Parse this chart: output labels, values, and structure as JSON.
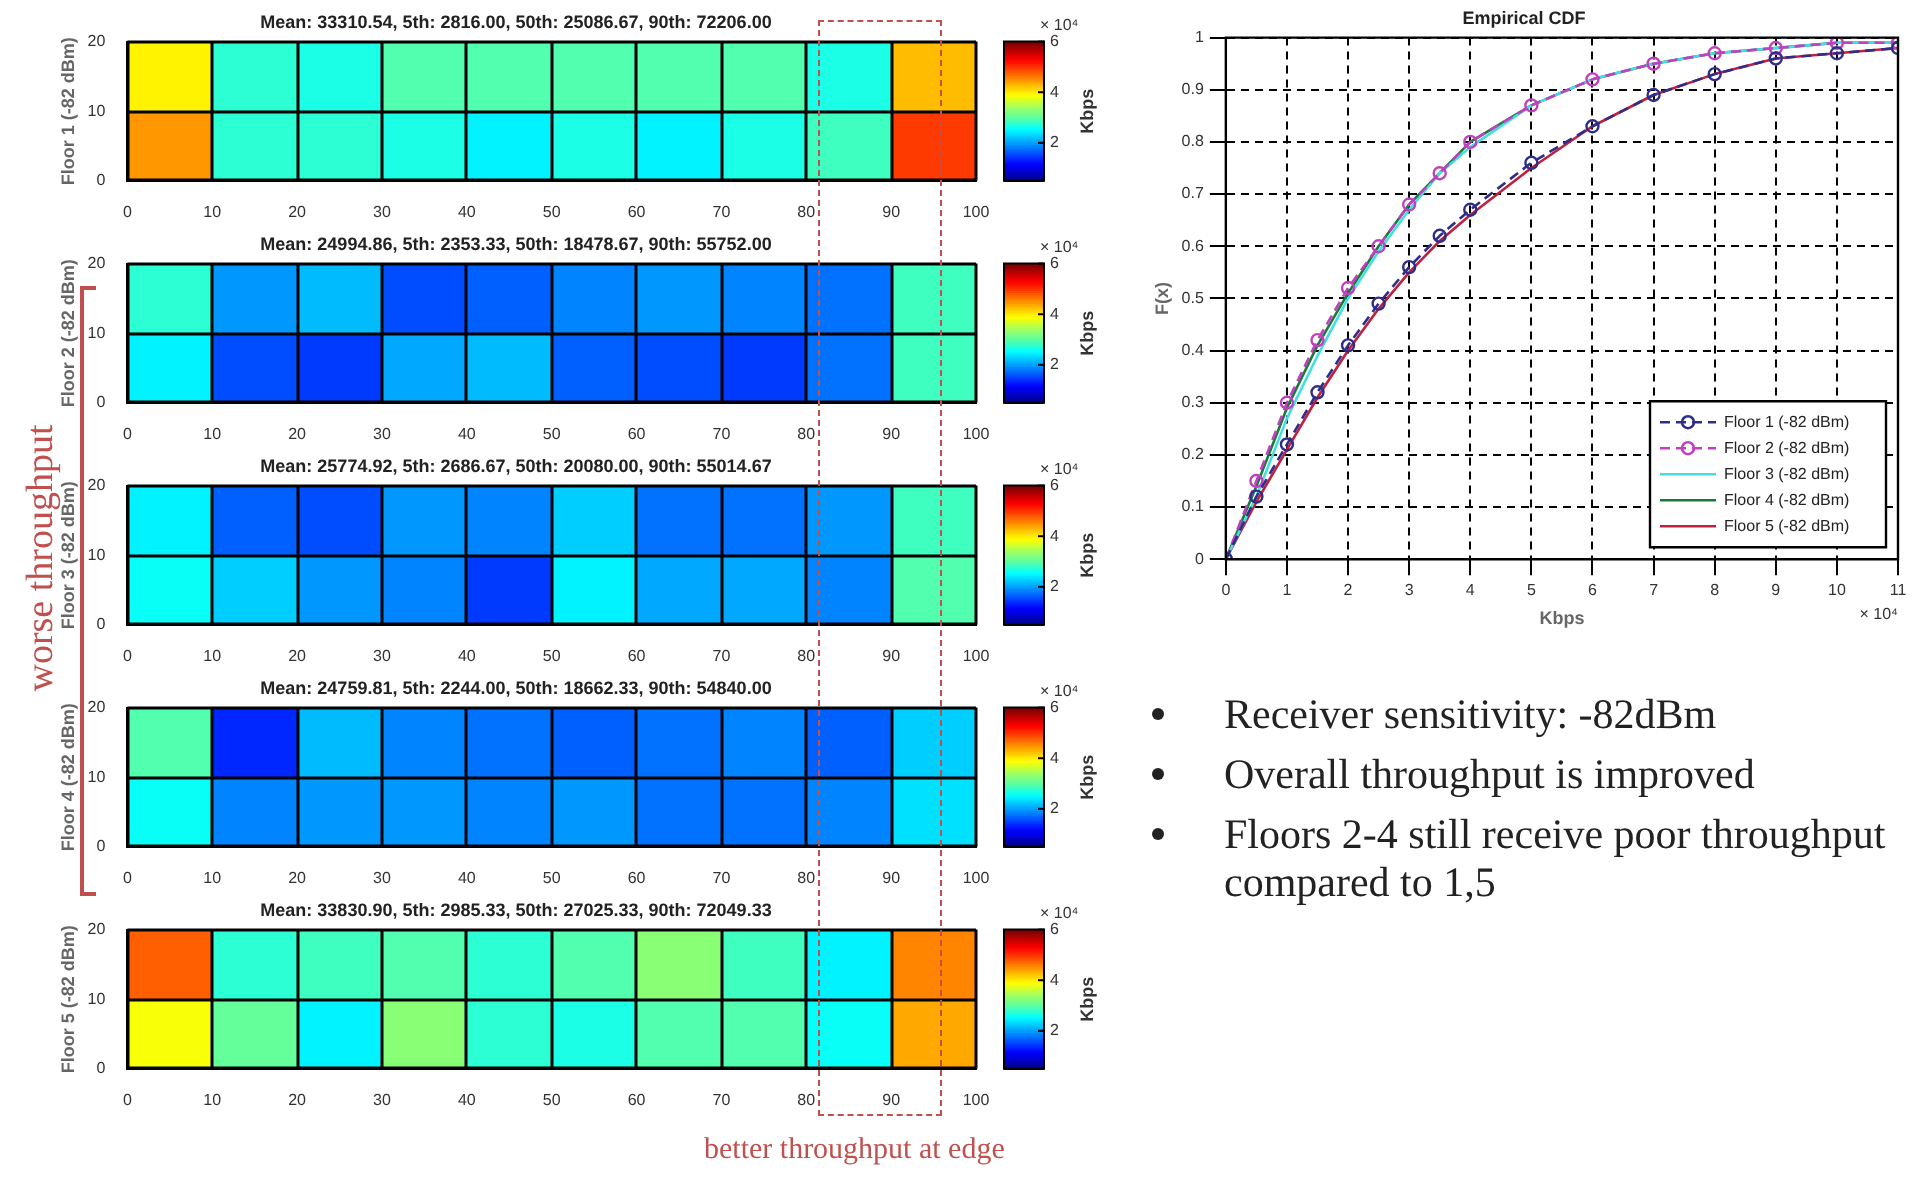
{
  "chart_data": [
    {
      "type": "heatmap",
      "title": "Mean: 33310.54, 5th: 2816.00, 50th: 25086.67, 90th: 72206.00",
      "ylabel": "Floor 1 (-82 dBm)",
      "clabel": "Kbps",
      "annotations": [
        "× 10⁴"
      ],
      "grid": true,
      "x": [
        5,
        15,
        25,
        35,
        45,
        55,
        65,
        75,
        85,
        95
      ],
      "y": [
        15,
        5
      ],
      "xlim": [
        0,
        100
      ],
      "xticks": [
        0,
        10,
        20,
        30,
        40,
        50,
        60,
        70,
        80,
        90,
        100
      ],
      "ylim": [
        0,
        20
      ],
      "yticks": [
        0,
        10,
        20
      ],
      "clim": [
        0.5,
        6
      ],
      "cticks": [
        2,
        4,
        6
      ],
      "cells": [
        [
          4,
          2.8,
          2.7,
          3,
          3,
          3,
          3,
          3,
          2.7,
          4.3
        ],
        [
          4.5,
          2.8,
          2.8,
          2.7,
          2.5,
          2.7,
          2.5,
          2.7,
          2.9,
          5
        ]
      ]
    },
    {
      "type": "heatmap",
      "title": "Mean: 24994.86, 5th: 2353.33, 50th: 18478.67, 90th: 55752.00",
      "ylabel": "Floor 2 (-82 dBm)",
      "clabel": "Kbps",
      "annotations": [
        "× 10⁴"
      ],
      "grid": true,
      "x": [
        5,
        15,
        25,
        35,
        45,
        55,
        65,
        75,
        85,
        95
      ],
      "y": [
        15,
        5
      ],
      "xlim": [
        0,
        100
      ],
      "xticks": [
        0,
        10,
        20,
        30,
        40,
        50,
        60,
        70,
        80,
        90,
        100
      ],
      "ylim": [
        0,
        20
      ],
      "yticks": [
        0,
        10,
        20
      ],
      "clim": [
        0.5,
        6
      ],
      "cticks": [
        2,
        4,
        6
      ],
      "cells": [
        [
          2.8,
          2,
          2.2,
          1.6,
          1.7,
          1.9,
          2,
          1.9,
          1.8,
          2.9
        ],
        [
          2.5,
          1.6,
          1.5,
          2.1,
          2.2,
          1.7,
          1.6,
          1.5,
          1.8,
          2.9
        ]
      ]
    },
    {
      "type": "heatmap",
      "title": "Mean: 25774.92, 5th: 2686.67, 50th: 20080.00, 90th: 55014.67",
      "ylabel": "Floor 3 (-82 dBm)",
      "clabel": "Kbps",
      "annotations": [
        "× 10⁴"
      ],
      "grid": true,
      "x": [
        5,
        15,
        25,
        35,
        45,
        55,
        65,
        75,
        85,
        95
      ],
      "y": [
        15,
        5
      ],
      "xlim": [
        0,
        100
      ],
      "xticks": [
        0,
        10,
        20,
        30,
        40,
        50,
        60,
        70,
        80,
        90,
        100
      ],
      "ylim": [
        0,
        20
      ],
      "yticks": [
        0,
        10,
        20
      ],
      "clim": [
        0.5,
        6
      ],
      "cticks": [
        2,
        4,
        6
      ],
      "cells": [
        [
          2.5,
          1.7,
          1.6,
          2,
          1.9,
          2.3,
          1.8,
          1.8,
          2,
          2.9
        ],
        [
          2.6,
          2.3,
          2,
          1.9,
          1.5,
          2.5,
          2.1,
          2.1,
          1.9,
          3
        ]
      ]
    },
    {
      "type": "heatmap",
      "title": "Mean: 24759.81, 5th: 2244.00, 50th: 18662.33, 90th: 54840.00",
      "ylabel": "Floor 4 (-82 dBm)",
      "clabel": "Kbps",
      "annotations": [
        "× 10⁴"
      ],
      "grid": true,
      "x": [
        5,
        15,
        25,
        35,
        45,
        55,
        65,
        75,
        85,
        95
      ],
      "y": [
        15,
        5
      ],
      "xlim": [
        0,
        100
      ],
      "xticks": [
        0,
        10,
        20,
        30,
        40,
        50,
        60,
        70,
        80,
        90,
        100
      ],
      "ylim": [
        0,
        20
      ],
      "yticks": [
        0,
        10,
        20
      ],
      "clim": [
        0.5,
        6
      ],
      "cticks": [
        2,
        4,
        6
      ],
      "cells": [
        [
          3,
          1.4,
          2.2,
          1.9,
          1.8,
          1.7,
          1.8,
          1.9,
          1.7,
          2.3
        ],
        [
          2.6,
          1.9,
          2,
          2,
          1.9,
          2,
          1.8,
          1.8,
          1.9,
          2.4
        ]
      ]
    },
    {
      "type": "heatmap",
      "title": "Mean: 33830.90, 5th: 2985.33, 50th: 27025.33, 90th: 72049.33",
      "ylabel": "Floor 5 (-82 dBm)",
      "clabel": "Kbps",
      "annotations": [
        "× 10⁴"
      ],
      "grid": true,
      "x": [
        5,
        15,
        25,
        35,
        45,
        55,
        65,
        75,
        85,
        95
      ],
      "y": [
        15,
        5
      ],
      "xlim": [
        0,
        100
      ],
      "xticks": [
        0,
        10,
        20,
        30,
        40,
        50,
        60,
        70,
        80,
        90,
        100
      ],
      "ylim": [
        0,
        20
      ],
      "yticks": [
        0,
        10,
        20
      ],
      "clim": [
        0.5,
        6
      ],
      "cticks": [
        2,
        4,
        6
      ],
      "cells": [
        [
          4.8,
          2.8,
          2.9,
          3,
          2.8,
          3,
          3.3,
          2.9,
          2.5,
          4.6
        ],
        [
          3.9,
          3.1,
          2.5,
          3.3,
          2.8,
          2.7,
          3,
          3,
          2.6,
          4.4
        ]
      ]
    },
    {
      "type": "line",
      "title": "Empirical CDF",
      "xlabel": "Kbps",
      "ylabel": "F(x)",
      "annotations": [
        "× 10⁴"
      ],
      "x": [
        0,
        0.5,
        1,
        1.5,
        2,
        2.5,
        3,
        3.5,
        4,
        5,
        6,
        7,
        8,
        9,
        10,
        11
      ],
      "xlim": [
        0,
        11
      ],
      "xticks": [
        0,
        1,
        2,
        3,
        4,
        5,
        6,
        7,
        8,
        9,
        10,
        11
      ],
      "ylim": [
        0,
        1
      ],
      "yticks": [
        0,
        0.1,
        0.2,
        0.3,
        0.4,
        0.5,
        0.6,
        0.7,
        0.8,
        0.9,
        1
      ],
      "grid": true,
      "legend": "bottom right",
      "series": [
        {
          "name": "Floor 1 (-82 dBm)",
          "color": "#2e2e8a",
          "marker": "circle",
          "line_style": "dashed",
          "values": [
            0,
            0.12,
            0.22,
            0.32,
            0.41,
            0.49,
            0.56,
            0.62,
            0.67,
            0.76,
            0.83,
            0.89,
            0.93,
            0.96,
            0.97,
            0.98
          ]
        },
        {
          "name": "Floor 2 (-82 dBm)",
          "color": "#c040c0",
          "marker": "circle",
          "line_style": "dashed",
          "values": [
            0,
            0.15,
            0.3,
            0.42,
            0.52,
            0.6,
            0.68,
            0.74,
            0.8,
            0.87,
            0.92,
            0.95,
            0.97,
            0.98,
            0.99,
            0.99
          ]
        },
        {
          "name": "Floor 3 (-82 dBm)",
          "color": "#40e0e0",
          "marker": "none",
          "line_style": "solid",
          "values": [
            0,
            0.12,
            0.27,
            0.39,
            0.5,
            0.59,
            0.67,
            0.74,
            0.79,
            0.87,
            0.92,
            0.95,
            0.97,
            0.98,
            0.99,
            0.99
          ]
        },
        {
          "name": "Floor 4 (-82 dBm)",
          "color": "#1a7a3a",
          "marker": "none",
          "line_style": "solid",
          "values": [
            0,
            0.14,
            0.29,
            0.41,
            0.51,
            0.6,
            0.68,
            0.74,
            0.8,
            0.87,
            0.92,
            0.95,
            0.97,
            0.98,
            0.99,
            0.99
          ]
        },
        {
          "name": "Floor 5 (-82 dBm)",
          "color": "#c02040",
          "marker": "none",
          "line_style": "solid",
          "values": [
            0,
            0.11,
            0.21,
            0.31,
            0.4,
            0.48,
            0.55,
            0.61,
            0.66,
            0.75,
            0.83,
            0.89,
            0.93,
            0.96,
            0.97,
            0.98
          ]
        }
      ]
    },
    {
      "type": "other",
      "annotations": [
        "Receiver sensitivity: -82dBm",
        "Overall throughput is improved",
        "Floors 2-4 still receive poor throughput compared to 1,5"
      ]
    },
    {
      "type": "other",
      "annotations": [
        "worse throughput",
        "better throughput at edge"
      ]
    }
  ]
}
